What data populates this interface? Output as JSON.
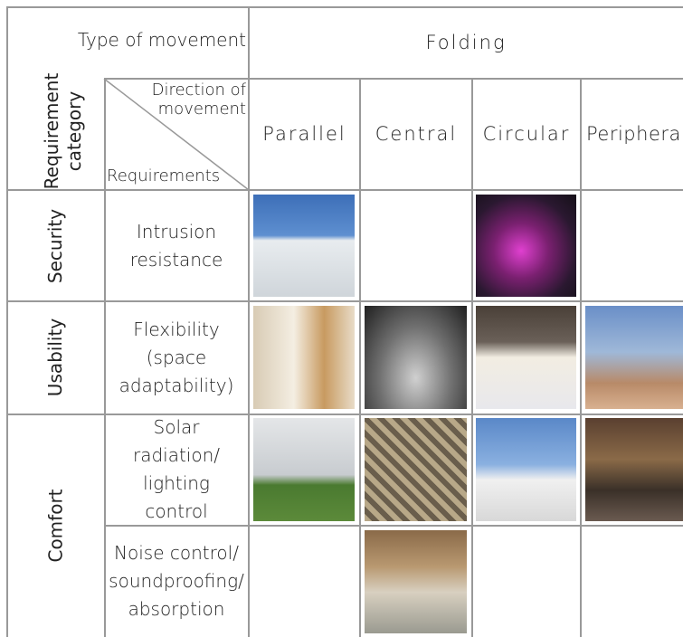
{
  "header": {
    "type_of_movement": "Type of movement",
    "requirement_category": "Requirement category",
    "direction_of_movement": "Direction of movement",
    "requirements": "Requirements",
    "group": "Folding",
    "columns": [
      "Parallel",
      "Central",
      "Circular",
      "Peripheral"
    ]
  },
  "categories": [
    {
      "name": "Security",
      "requirements": [
        "Intrusion resistance"
      ]
    },
    {
      "name": "Usability",
      "requirements": [
        "Flexibility (space adaptability)"
      ]
    },
    {
      "name": "Comfort",
      "requirements": [
        "Solar radiation/ lighting control",
        "Noise control/ soundproofing/ absorption"
      ]
    }
  ]
}
